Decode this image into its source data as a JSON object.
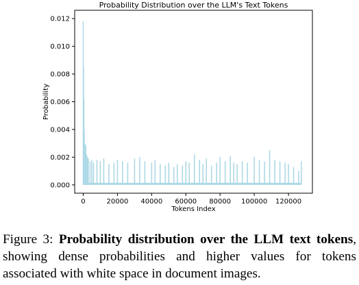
{
  "chart_data": {
    "type": "bar",
    "title": "Probability Distribution over the LLM's Text Tokens",
    "xlabel": "Tokens Index",
    "ylabel": "Probability",
    "xlim": [
      -5000,
      134000
    ],
    "ylim": [
      -0.0006,
      0.0126
    ],
    "xticks": [
      0,
      20000,
      40000,
      60000,
      80000,
      100000,
      120000
    ],
    "xtick_labels": [
      "0",
      "20000",
      "40000",
      "60000",
      "80000",
      "100000",
      "120000"
    ],
    "yticks": [
      0.0,
      0.002,
      0.004,
      0.006,
      0.008,
      0.01,
      0.012
    ],
    "ytick_labels": [
      "0.000",
      "0.002",
      "0.004",
      "0.006",
      "0.008",
      "0.010",
      "0.012"
    ],
    "grid": false,
    "bar_color": "#add8e6",
    "x": [
      0,
      200,
      400,
      600,
      800,
      1000,
      1200,
      1500,
      2000,
      2500,
      3000,
      4000,
      5000,
      6000,
      8000,
      10000,
      12000,
      15000,
      18000,
      20000,
      23000,
      26000,
      30000,
      33000,
      36000,
      40000,
      42000,
      45000,
      48000,
      50000,
      53000,
      55000,
      58000,
      60000,
      62000,
      65000,
      68000,
      70000,
      72000,
      75000,
      78000,
      80000,
      83000,
      86000,
      88000,
      90000,
      93000,
      96000,
      100000,
      103000,
      106000,
      109000,
      112000,
      115000,
      118000,
      120000,
      123000,
      126000,
      127500
    ],
    "values": [
      0.0118,
      0.0085,
      0.0062,
      0.004,
      0.003,
      0.0028,
      0.0024,
      0.0029,
      0.0022,
      0.002,
      0.0019,
      0.0017,
      0.0018,
      0.0016,
      0.0018,
      0.0017,
      0.0019,
      0.0015,
      0.0016,
      0.0018,
      0.0017,
      0.0016,
      0.0019,
      0.002,
      0.0017,
      0.0016,
      0.0018,
      0.0015,
      0.0014,
      0.0016,
      0.0013,
      0.0015,
      0.0014,
      0.0017,
      0.0016,
      0.0022,
      0.0018,
      0.0015,
      0.0019,
      0.0014,
      0.0016,
      0.002,
      0.0017,
      0.0021,
      0.0016,
      0.0015,
      0.0017,
      0.0016,
      0.002,
      0.0018,
      0.0017,
      0.0025,
      0.0018,
      0.0017,
      0.0016,
      0.0015,
      0.0013,
      0.001,
      0.0017
    ]
  },
  "caption": {
    "prefix": "Figure 3: ",
    "bold": "Probability distribution over the LLM text tokens",
    "rest": ", showing dense probabilities and higher values for tokens associated with white space in document images."
  }
}
